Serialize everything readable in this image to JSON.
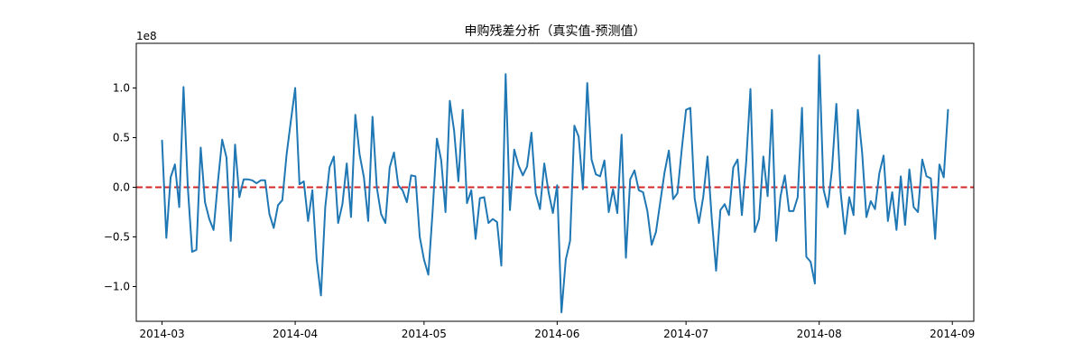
{
  "chart_data": {
    "type": "line",
    "title": "申购残差分析（真实值-预测值）",
    "xlabel": "",
    "ylabel": "",
    "y_scale_label": "1e8",
    "xlim": [
      "2014-02-23",
      "2014-09-06"
    ],
    "ylim": [
      -1.35,
      1.45
    ],
    "x_ticks": [
      "2014-03",
      "2014-04",
      "2014-05",
      "2014-06",
      "2014-07",
      "2014-08",
      "2014-09"
    ],
    "x_tick_dates": [
      "2014-03-01",
      "2014-04-01",
      "2014-05-01",
      "2014-06-01",
      "2014-07-01",
      "2014-08-01",
      "2014-09-01"
    ],
    "y_ticks": [
      -1.0,
      -0.5,
      0.0,
      0.5,
      1.0
    ],
    "y_tick_labels": [
      "−1.0",
      "−0.5",
      "0.0",
      "0.5",
      "1.0"
    ],
    "grid": false,
    "line_color": "#1f77b4",
    "reference_line": {
      "y": 0,
      "color": "#d62728",
      "style": "dashed"
    },
    "x_start": "2014-03-01",
    "x_step_days": 1,
    "values": [
      0.47,
      -0.51,
      0.1,
      0.23,
      -0.2,
      1.01,
      0.0,
      -0.65,
      -0.63,
      0.4,
      -0.15,
      -0.32,
      -0.43,
      0.05,
      0.48,
      0.3,
      -0.54,
      0.43,
      -0.1,
      0.08,
      0.08,
      0.07,
      0.04,
      0.07,
      0.07,
      -0.27,
      -0.41,
      -0.18,
      -0.13,
      0.33,
      0.67,
      1.0,
      0.03,
      0.06,
      -0.34,
      -0.03,
      -0.73,
      -1.09,
      -0.2,
      0.2,
      0.31,
      -0.36,
      -0.17,
      0.24,
      -0.3,
      0.73,
      0.33,
      0.1,
      -0.34,
      0.71,
      0.0,
      -0.27,
      -0.36,
      0.2,
      0.35,
      0.02,
      -0.03,
      -0.15,
      0.12,
      0.11,
      -0.5,
      -0.73,
      -0.88,
      -0.24,
      0.49,
      0.27,
      -0.25,
      0.87,
      0.57,
      0.06,
      0.78,
      -0.16,
      -0.03,
      -0.52,
      -0.11,
      -0.1,
      -0.36,
      -0.32,
      -0.35,
      -0.79,
      1.14,
      -0.23,
      0.38,
      0.22,
      0.12,
      0.21,
      0.55,
      -0.06,
      -0.22,
      0.24,
      -0.05,
      -0.26,
      0.02,
      -1.26,
      -0.73,
      -0.54,
      0.62,
      0.51,
      -0.02,
      1.05,
      0.28,
      0.13,
      0.11,
      0.27,
      -0.25,
      -0.02,
      -0.26,
      0.53,
      -0.71,
      0.08,
      0.17,
      -0.03,
      -0.05,
      -0.24,
      -0.58,
      -0.45,
      -0.15,
      0.15,
      0.37,
      -0.12,
      -0.06,
      0.38,
      0.78,
      0.8,
      -0.11,
      -0.36,
      -0.1,
      0.31,
      -0.32,
      -0.84,
      -0.23,
      -0.17,
      -0.28,
      0.2,
      0.28,
      -0.28,
      0.25,
      0.99,
      -0.45,
      -0.32,
      0.31,
      -0.09,
      0.78,
      -0.54,
      -0.09,
      0.12,
      -0.24,
      -0.24,
      -0.1,
      0.8,
      -0.7,
      -0.75,
      -0.97,
      1.33,
      -0.02,
      -0.2,
      0.19,
      0.84,
      -0.05,
      -0.47,
      -0.1,
      -0.28,
      0.78,
      0.35,
      -0.3,
      -0.14,
      -0.22,
      0.14,
      0.32,
      -0.34,
      -0.05,
      -0.43,
      0.11,
      -0.38,
      0.18,
      -0.2,
      -0.25,
      0.28,
      0.11,
      0.09,
      -0.52,
      0.23,
      0.1,
      0.78
    ]
  }
}
